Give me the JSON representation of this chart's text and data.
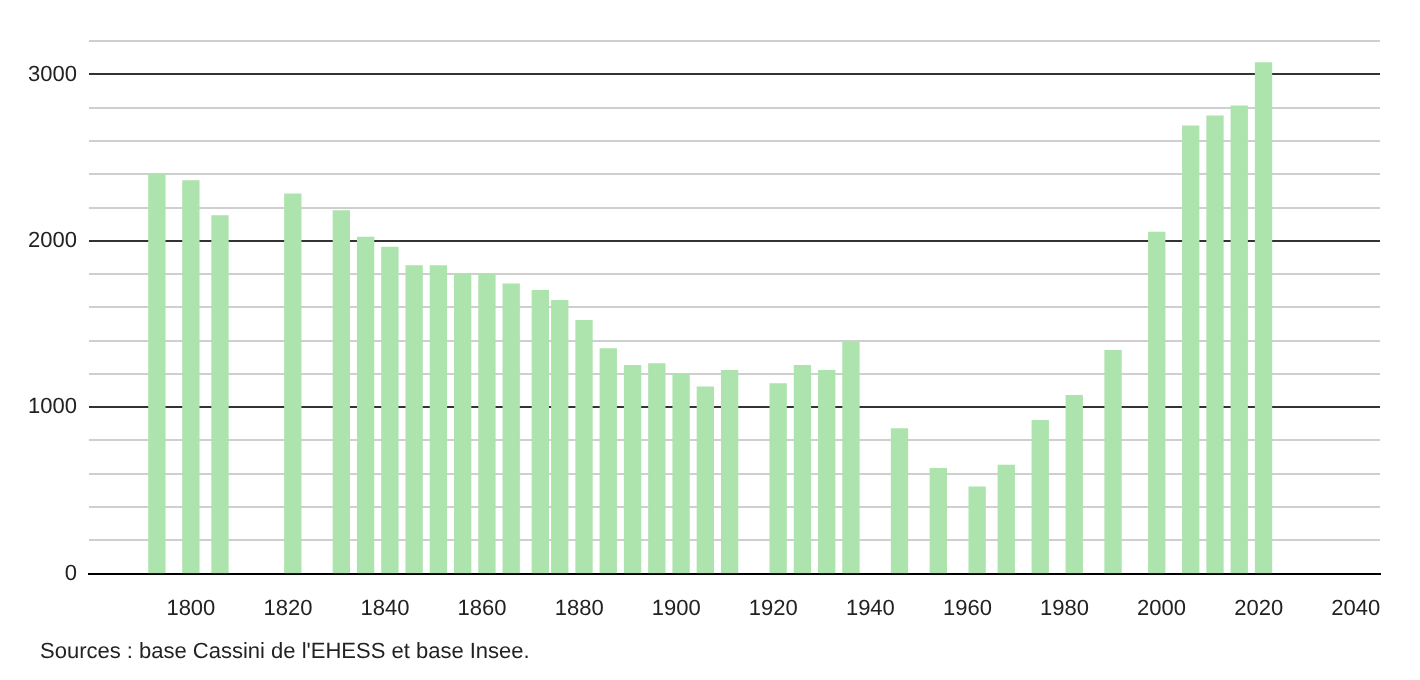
{
  "chart_data": {
    "type": "bar",
    "x": [
      1793,
      1800,
      1806,
      1821,
      1831,
      1836,
      1841,
      1846,
      1851,
      1856,
      1861,
      1866,
      1872,
      1876,
      1881,
      1886,
      1891,
      1896,
      1901,
      1906,
      1911,
      1921,
      1926,
      1931,
      1936,
      1946,
      1954,
      1962,
      1968,
      1975,
      1982,
      1990,
      1999,
      2006,
      2011,
      2016,
      2021
    ],
    "values": [
      2400,
      2360,
      2150,
      2280,
      2180,
      2020,
      1960,
      1850,
      1850,
      1800,
      1800,
      1740,
      1700,
      1640,
      1520,
      1350,
      1250,
      1260,
      1200,
      1120,
      1220,
      1140,
      1250,
      1220,
      1390,
      870,
      630,
      520,
      650,
      920,
      1070,
      1340,
      2050,
      2690,
      2750,
      2810,
      3070
    ],
    "color": "#ade3ad",
    "xlim": [
      1779,
      2045
    ],
    "xticks": [
      1800,
      1820,
      1840,
      1860,
      1880,
      1900,
      1920,
      1940,
      1960,
      1980,
      2000,
      2020,
      2040
    ],
    "ylim": [
      0,
      3200
    ],
    "yticks": [
      0,
      {
        "value": 200,
        "label": null
      },
      {
        "value": 400,
        "label": null
      },
      {
        "value": 600,
        "label": null
      },
      {
        "value": 800,
        "label": null
      },
      1000,
      {
        "value": 1200,
        "label": null
      },
      {
        "value": 1400,
        "label": null
      },
      {
        "value": 1600,
        "label": null
      },
      {
        "value": 1800,
        "label": null
      },
      2000,
      {
        "value": 2200,
        "label": null
      },
      {
        "value": 2400,
        "label": null
      },
      {
        "value": 2600,
        "label": null
      },
      {
        "value": 2800,
        "label": null
      },
      3000,
      {
        "value": 3200,
        "label": null
      }
    ],
    "grid": "y",
    "legend": false,
    "annotations": [
      "Sources : base Cassini de l'EHESS et base Insee."
    ]
  }
}
